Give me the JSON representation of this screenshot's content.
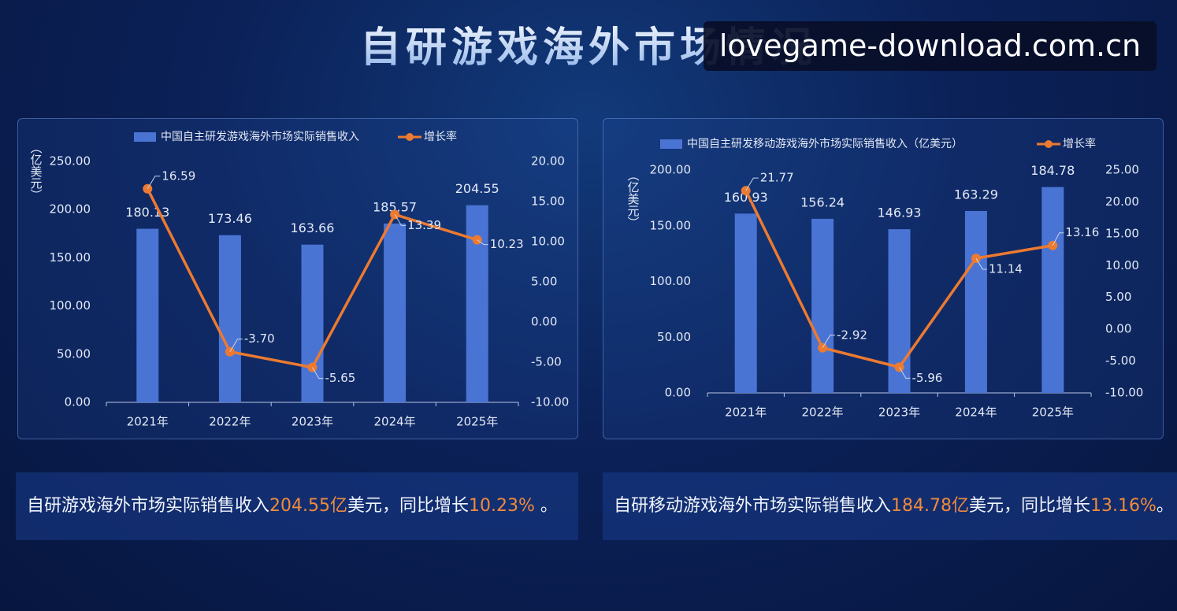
{
  "title": "自研游戏海外市场情况",
  "watermark": "lovegame-download.com.cn",
  "chart_data": [
    {
      "type": "bar",
      "categories": [
        "2021年",
        "2022年",
        "2023年",
        "2024年",
        "2025年"
      ],
      "ylabel": "（亿美元）",
      "series": [
        {
          "name": "中国自主研发游戏海外市场实际销售收入",
          "type": "bar",
          "color": "#4a74d4",
          "values": [
            180.13,
            173.46,
            163.66,
            185.57,
            204.55
          ]
        },
        {
          "name": "增长率",
          "type": "line",
          "axis": "y2",
          "color": "#ec7a30",
          "values": [
            16.59,
            -3.7,
            -5.65,
            13.39,
            10.23
          ],
          "value_labels": [
            "16.59",
            "-3.70",
            "-5.65",
            "13.39",
            "10.23"
          ]
        }
      ],
      "ylim": [
        0,
        250
      ],
      "yticks": [
        {
          "value": 0,
          "label": "0.00"
        },
        {
          "value": 50,
          "label": "50.00"
        },
        {
          "value": 100,
          "label": "100.00"
        },
        {
          "value": 150,
          "label": "150.00"
        },
        {
          "value": 200,
          "label": "200.00"
        },
        {
          "value": 250,
          "label": "250.00"
        }
      ],
      "y2lim": [
        -10,
        20
      ],
      "y2ticks": [
        {
          "value": -10,
          "label": "-10.00"
        },
        {
          "value": -5,
          "label": "-5.00"
        },
        {
          "value": 0,
          "label": "0.00"
        },
        {
          "value": 5,
          "label": "5.00"
        },
        {
          "value": 10,
          "label": "10.00"
        },
        {
          "value": 15,
          "label": "15.00"
        },
        {
          "value": 20,
          "label": "20.00"
        }
      ]
    },
    {
      "type": "bar",
      "categories": [
        "2021年",
        "2022年",
        "2023年",
        "2024年",
        "2025年"
      ],
      "ylabel": "（亿美元）",
      "series": [
        {
          "name": "中国自主研发移动游戏海外市场实际销售收入（亿美元）",
          "type": "bar",
          "color": "#4a74d4",
          "values": [
            160.93,
            156.24,
            146.93,
            163.29,
            184.78
          ]
        },
        {
          "name": "增长率",
          "type": "line",
          "axis": "y2",
          "color": "#ec7a30",
          "values": [
            21.77,
            -2.92,
            -5.96,
            11.14,
            13.16
          ]
        }
      ],
      "ylim": [
        0,
        200
      ],
      "yticks": [
        {
          "value": 0,
          "label": "0.00"
        },
        {
          "value": 50,
          "label": "50.00"
        },
        {
          "value": 100,
          "label": "100.00"
        },
        {
          "value": 150,
          "label": "150.00"
        },
        {
          "value": 200,
          "label": "200.00"
        }
      ],
      "y2lim": [
        -10,
        25
      ],
      "y2ticks": [
        {
          "value": -10,
          "label": "-10.00"
        },
        {
          "value": -5,
          "label": "-5.00"
        },
        {
          "value": 0,
          "label": "0.00"
        },
        {
          "value": 5,
          "label": "5.00"
        },
        {
          "value": 10,
          "label": "10.00"
        },
        {
          "value": 15,
          "label": "15.00"
        },
        {
          "value": 20,
          "label": "20.00"
        },
        {
          "value": 25,
          "label": "25.00"
        }
      ]
    }
  ],
  "summaries": [
    {
      "parts": [
        {
          "text": "自研游戏海外市场实际销售收入"
        },
        {
          "text": "204.55亿",
          "highlight": true
        },
        {
          "text": "美元，同比增长"
        },
        {
          "text": "10.23%",
          "highlight": true
        },
        {
          "text": " 。"
        }
      ]
    },
    {
      "parts": [
        {
          "text": "自研移动游戏海外市场实际销售收入"
        },
        {
          "text": "184.78亿",
          "highlight": true
        },
        {
          "text": "美元，同比增长"
        },
        {
          "text": "13.16%",
          "highlight": true
        },
        {
          "text": "。"
        }
      ]
    }
  ]
}
